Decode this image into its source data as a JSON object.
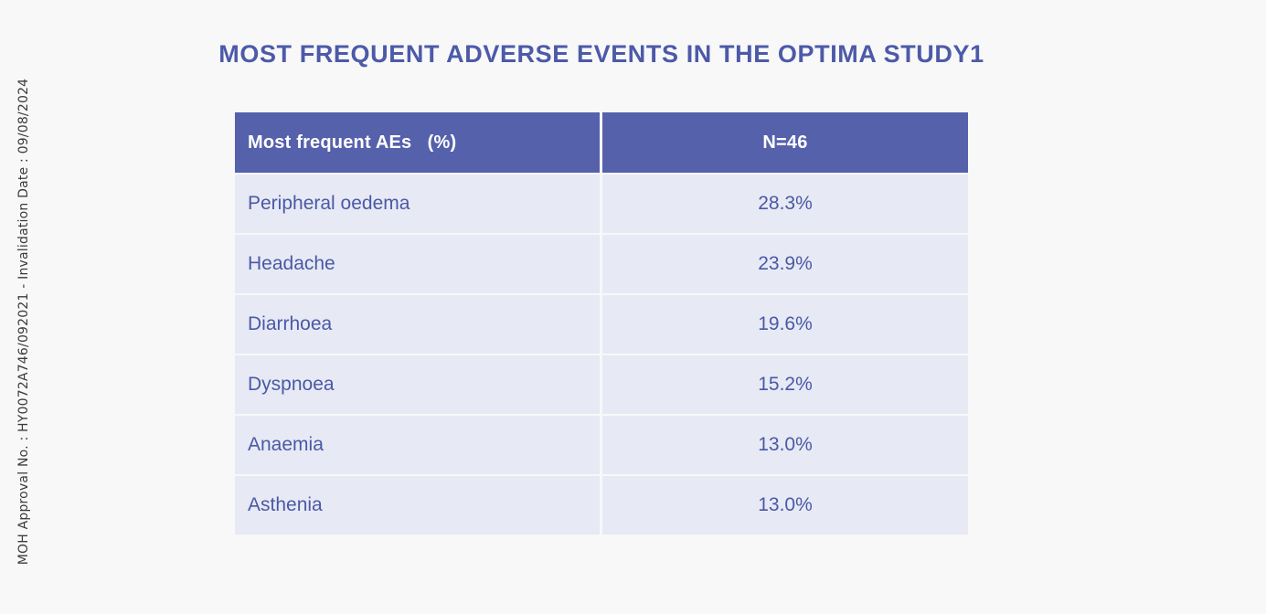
{
  "title": "MOST FREQUENT ADVERSE EVENTS IN THE OPTIMA STUDY1",
  "watermark": {
    "text": "MOH Approval No. : HY0072A746/092021 - Invalidation Date : 09/08/2024"
  },
  "table": {
    "header": {
      "col1": "Most frequent AEs   (%)",
      "col2": "N=46"
    },
    "rows": [
      {
        "event": "Peripheral oedema",
        "value": "28.3%"
      },
      {
        "event": "Headache",
        "value": "23.9%"
      },
      {
        "event": "Diarrhoea",
        "value": "19.6%"
      },
      {
        "event": "Dyspnoea",
        "value": "15.2%"
      },
      {
        "event": "Anaemia",
        "value": "13.0%"
      },
      {
        "event": "Asthenia",
        "value": "13.0%"
      }
    ]
  },
  "chart_data": {
    "type": "table",
    "title": "MOST FREQUENT ADVERSE EVENTS IN THE OPTIMA STUDY1",
    "columns": [
      "Most frequent AEs (%)",
      "N=46"
    ],
    "rows": [
      [
        "Peripheral oedema",
        "28.3%"
      ],
      [
        "Headache",
        "23.9%"
      ],
      [
        "Diarrhoea",
        "19.6%"
      ],
      [
        "Dyspnoea",
        "15.2%"
      ],
      [
        "Anaemia",
        "13.0%"
      ],
      [
        "Asthenia",
        "13.0%"
      ]
    ],
    "values_numeric_percent": [
      28.3,
      23.9,
      19.6,
      15.2,
      13.0,
      13.0
    ],
    "n": 46
  },
  "colors": {
    "page_bg": "#f8f8f9",
    "header_bg": "#5561ab",
    "header_text": "#ffffff",
    "row_bg": "#e7e9f4",
    "row_text": "#4a59a6",
    "title_text": "#4c5aa8",
    "watermark_text": "#3b3b3b"
  }
}
